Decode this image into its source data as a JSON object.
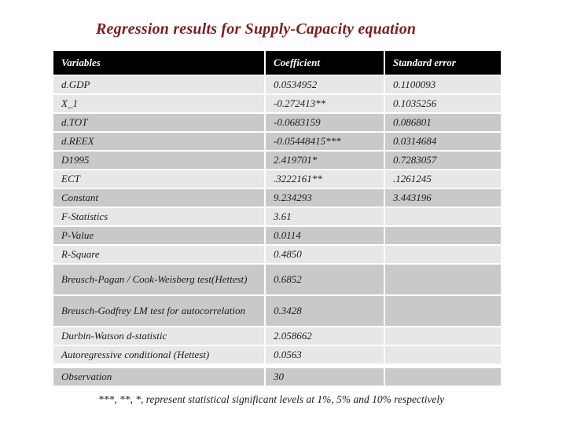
{
  "colors": {
    "title": "#7f1c1c",
    "header_bg": "#000000",
    "header_text": "#ffffff",
    "row_light": "#e7e7e7",
    "row_dark": "#c9c9c9",
    "body_text": "#1c1c1c"
  },
  "title": "Regression results for Supply-Capacity equation",
  "table": {
    "headers": [
      "Variables",
      "Coefficient",
      "Standard error"
    ],
    "rows": [
      {
        "variable": "d.GDP",
        "coefficient": "0.0534952",
        "std_error": "0.1100093",
        "shade": "light"
      },
      {
        "variable": "X_1",
        "coefficient": "-0.272413**",
        "std_error": "0.1035256",
        "shade": "light"
      },
      {
        "variable": "d.TOT",
        "coefficient": "-0.0683159",
        "std_error": "0.086801",
        "shade": "dark"
      },
      {
        "variable": "d.REEX",
        "coefficient": "-0.05448415***",
        "std_error": "0.0314684",
        "shade": "dark"
      },
      {
        "variable": "D1995",
        "coefficient": "2.419701*",
        "std_error": "0.7283057",
        "shade": "dark"
      },
      {
        "variable": "ECT",
        "coefficient": ".3222161**",
        "std_error": ".1261245",
        "shade": "light"
      },
      {
        "variable": "Constant",
        "coefficient": "9.234293",
        "std_error": "3.443196",
        "shade": "dark"
      },
      {
        "variable": "F-Statistics",
        "coefficient": "3.61",
        "std_error": "",
        "shade": "light"
      },
      {
        "variable": "P-Value",
        "coefficient": "0.0114",
        "std_error": "",
        "shade": "dark"
      },
      {
        "variable": "R-Square",
        "coefficient": "0.4850",
        "std_error": "",
        "shade": "light"
      },
      {
        "variable": "Breusch-Pagan / Cook-Weisberg test(Hettest)",
        "coefficient": "0.6852",
        "std_error": "",
        "shade": "dark",
        "tall": true
      },
      {
        "variable": "Breusch-Godfrey LM test for autocorrelation",
        "coefficient": "0.3428",
        "std_error": "",
        "shade": "dark",
        "tall": true
      },
      {
        "variable": "Durbin-Watson d-statistic",
        "coefficient": "2.058662",
        "std_error": "",
        "shade": "light"
      },
      {
        "variable": "Autoregressive conditional (Hettest)",
        "coefficient": "0.0563",
        "std_error": "",
        "shade": "light"
      },
      {
        "variable": "Observation",
        "coefficient": "30",
        "std_error": "",
        "shade": "dark",
        "gap_above": true
      }
    ]
  },
  "footnote": "***, **, *, represent statistical significant levels at 1%, 5% and 10% respectively"
}
